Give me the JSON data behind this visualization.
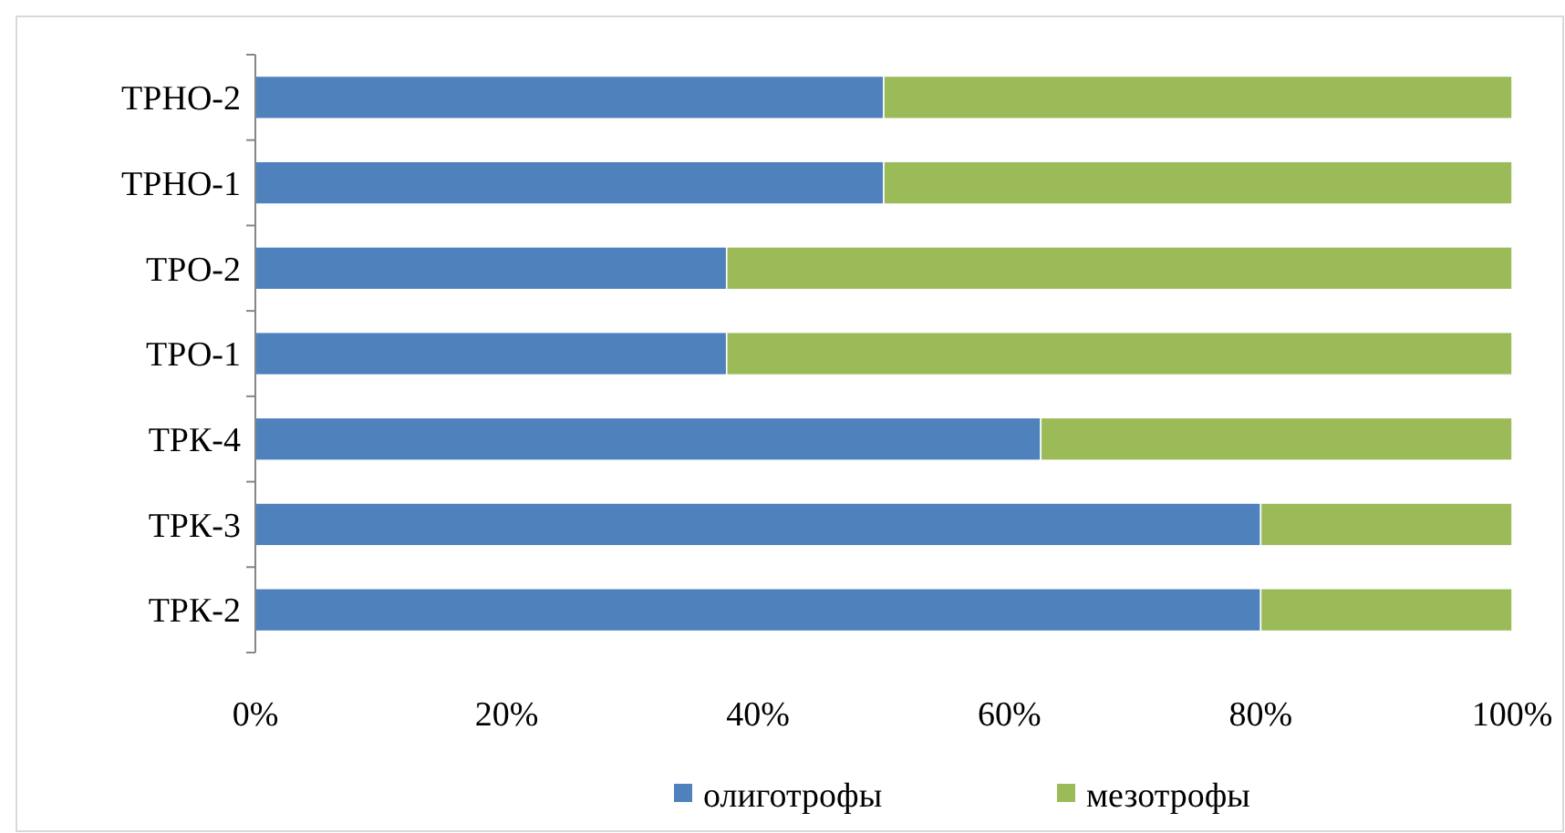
{
  "chart_data": {
    "type": "bar",
    "orientation": "horizontal",
    "stacked": true,
    "categories": [
      "ТРНО-2",
      "ТРНО-1",
      "ТРО-2",
      "ТРО-1",
      "ТРК-4",
      "ТРК-3",
      "ТРК-2"
    ],
    "series": [
      {
        "name": "олиготрофы",
        "color": "#4f81bd",
        "values": [
          50,
          50,
          37.5,
          37.5,
          62.5,
          80,
          80
        ]
      },
      {
        "name": "мезотрофы",
        "color": "#9bbb59",
        "values": [
          50,
          50,
          62.5,
          62.5,
          37.5,
          20,
          20
        ]
      }
    ],
    "xlim": [
      0,
      100
    ],
    "xticks": [
      {
        "value": 0,
        "label": "0%"
      },
      {
        "value": 20,
        "label": "20%"
      },
      {
        "value": 40,
        "label": "40%"
      },
      {
        "value": 60,
        "label": "60%"
      },
      {
        "value": 80,
        "label": "80%"
      },
      {
        "value": 100,
        "label": "100%"
      }
    ],
    "grid": false,
    "legend": "bottom"
  }
}
